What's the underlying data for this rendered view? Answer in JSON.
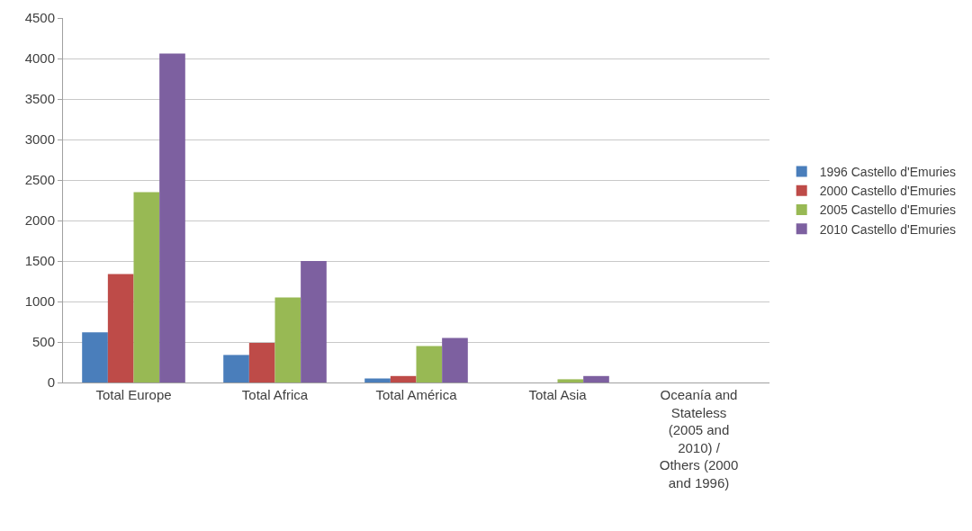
{
  "chart_data": {
    "type": "bar",
    "categories": [
      "Total Europe",
      "Total Africa",
      "Total América",
      "Total Asia",
      "Oceanía and Stateless (2005 and 2010) / Others (2000 and 1996)"
    ],
    "series": [
      {
        "name": "1996 Castello d'Emuries",
        "color": "#4a7ebb",
        "values": [
          620,
          340,
          50,
          0,
          0
        ]
      },
      {
        "name": "2000 Castello d'Emuries",
        "color": "#be4b48",
        "values": [
          1340,
          490,
          80,
          0,
          0
        ]
      },
      {
        "name": "2005 Castello d'Emuries",
        "color": "#98b954",
        "values": [
          2350,
          1050,
          450,
          40,
          0
        ]
      },
      {
        "name": "2010 Castello d'Emuries",
        "color": "#7d60a0",
        "values": [
          4060,
          1500,
          550,
          80,
          0
        ]
      }
    ],
    "ylim": [
      0,
      4500
    ],
    "yticks": [
      0,
      500,
      1000,
      1500,
      2000,
      2500,
      3000,
      3500,
      4000,
      4500
    ],
    "grid": "y",
    "legend": "right"
  }
}
